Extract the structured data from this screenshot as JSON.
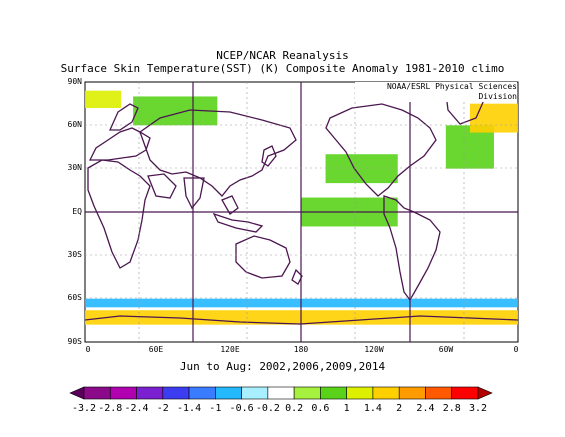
{
  "title_line1": "NCEP/NCAR Reanalysis",
  "title_line2": "Surface Skin Temperature(SST) (K) Composite Anomaly 1981-2010 climo",
  "credit": "NOAA/ESRL Physical Sciences Division",
  "subtitle": "Jun to Aug: 2002,2006,2009,2014",
  "lat_labels": [
    "90N",
    "60N",
    "30N",
    "EQ",
    "30S",
    "60S",
    "90S"
  ],
  "lon_labels": [
    "0",
    "60E",
    "120E",
    "180",
    "120W",
    "60W",
    "0"
  ],
  "colorbar": {
    "labels": [
      "-3.2",
      "-2.8",
      "-2.4",
      "-2",
      "-1.4",
      "-1",
      "-0.6",
      "-0.2",
      "0.2",
      "0.6",
      "1",
      "1.4",
      "2",
      "2.4",
      "2.8",
      "3.2"
    ],
    "colors": [
      "#5a005a",
      "#8a0a8a",
      "#b000b0",
      "#7a20d0",
      "#3c3cf0",
      "#3a7cff",
      "#24b8ff",
      "#a8f0ff",
      "#ffffff",
      "#a6f040",
      "#5ad21a",
      "#ddf000",
      "#ffd000",
      "#ff9a00",
      "#ff5a00",
      "#ff0000",
      "#b00000"
    ]
  },
  "map": {
    "type": "anomaly-map",
    "lon_range": [
      0,
      360
    ],
    "lat_range": [
      -90,
      90
    ],
    "grid": true,
    "anomaly_regions": [
      {
        "lon": [
          40,
          110
        ],
        "lat": [
          60,
          80
        ],
        "value": 0.6
      },
      {
        "lon": [
          0,
          30
        ],
        "lat": [
          72,
          84
        ],
        "value": 1.0
      },
      {
        "lon": [
          200,
          260
        ],
        "lat": [
          20,
          40
        ],
        "value": 0.6
      },
      {
        "lon": [
          300,
          340
        ],
        "lat": [
          30,
          60
        ],
        "value": 0.8
      },
      {
        "lon": [
          180,
          260
        ],
        "lat": [
          -10,
          10
        ],
        "value": 0.6
      },
      {
        "lon": [
          0,
          360
        ],
        "lat": [
          -66,
          -60
        ],
        "value": -1.0
      },
      {
        "lon": [
          0,
          360
        ],
        "lat": [
          -78,
          -68
        ],
        "value": 1.8
      },
      {
        "lon": [
          320,
          360
        ],
        "lat": [
          55,
          75
        ],
        "value": 1.6
      }
    ]
  }
}
